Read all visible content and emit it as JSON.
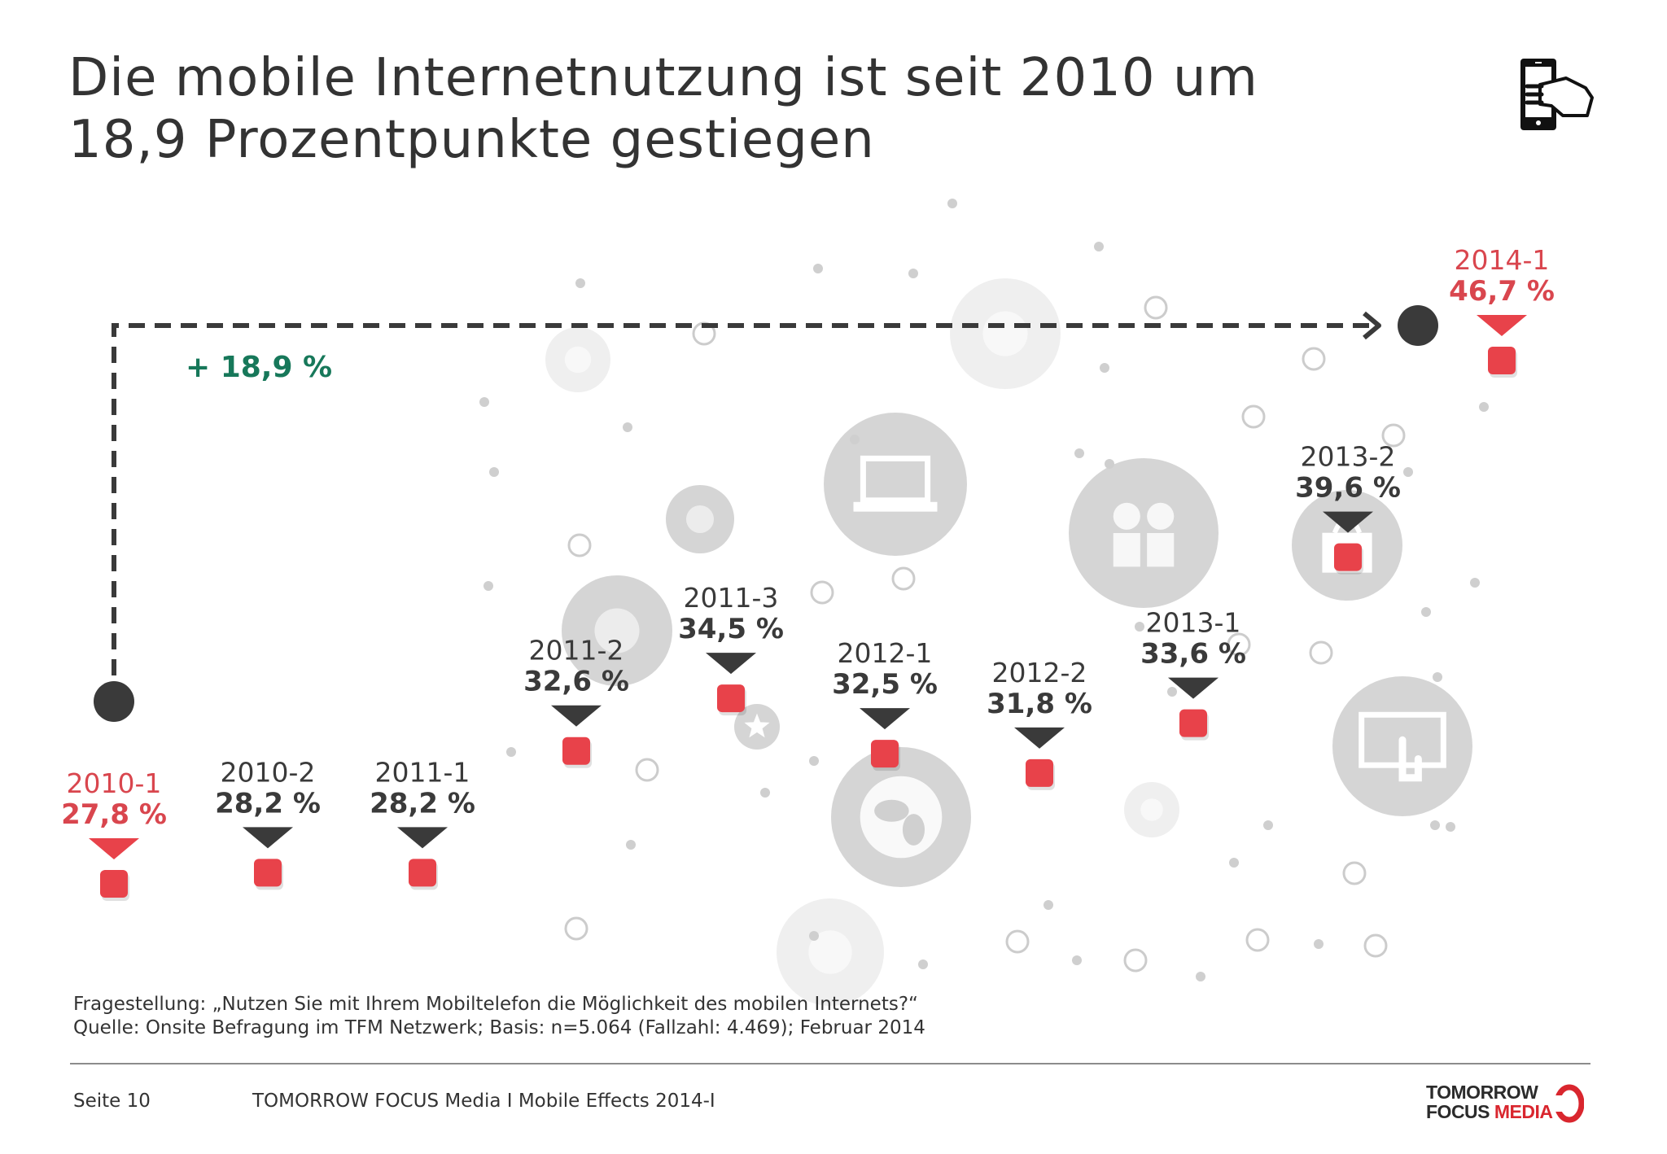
{
  "title": {
    "line1": "Die mobile Internetnutzung ist seit 2010 um",
    "line2": "18,9 Prozentpunkte gestiegen"
  },
  "colors": {
    "accent_red": "#e8424a",
    "label_red": "#d9464e",
    "dark": "#3a3a3a",
    "green": "#17785a",
    "bubble": "#d0d0d0"
  },
  "chart_data": {
    "type": "scatter",
    "title": "Die mobile Internetnutzung ist seit 2010 um 18,9 Prozentpunkte gestiegen",
    "unit": "%",
    "categories": [
      "2010-1",
      "2010-2",
      "2011-1",
      "2011-2",
      "2011-3",
      "2012-1",
      "2012-2",
      "2013-1",
      "2013-2",
      "2014-1"
    ],
    "values": [
      27.8,
      28.2,
      28.2,
      32.6,
      34.5,
      32.5,
      31.8,
      33.6,
      39.6,
      46.7
    ],
    "value_labels": [
      "27,8 %",
      "28,2 %",
      "28,2 %",
      "32,6 %",
      "34,5 %",
      "32,5 %",
      "31,8 %",
      "33,6 %",
      "39,6 %",
      "46,7 %"
    ],
    "highlighted": [
      "2010-1",
      "2014-1"
    ],
    "annotation": "+ 18,9 %",
    "xlabel": "",
    "ylabel": "",
    "grid": false,
    "legend": "none"
  },
  "footnote": {
    "question": "Fragestellung: „Nutzen Sie mit Ihrem Mobiltelefon die Möglichkeit des mobilen Internets?“",
    "source": "Quelle: Onsite Befragung im TFM Netzwerk; Basis: n=5.064 (Fallzahl: 4.469); Februar 2014"
  },
  "footer": {
    "page": "Seite 10",
    "report": "TOMORROW FOCUS Media  I  Mobile Effects 2014-I",
    "logo_line1": "TOMORROW",
    "logo_line2_a": "FOCUS ",
    "logo_line2_b": "MEDIA"
  },
  "icons": [
    "smartphone-hand-icon",
    "phone-icon",
    "chat-icon",
    "laptop-icon",
    "bird-icon",
    "notepad-icon",
    "people-icon",
    "star-icon",
    "globe-icon",
    "shopping-bag-icon",
    "tablet-touch-icon",
    "music-icon"
  ]
}
